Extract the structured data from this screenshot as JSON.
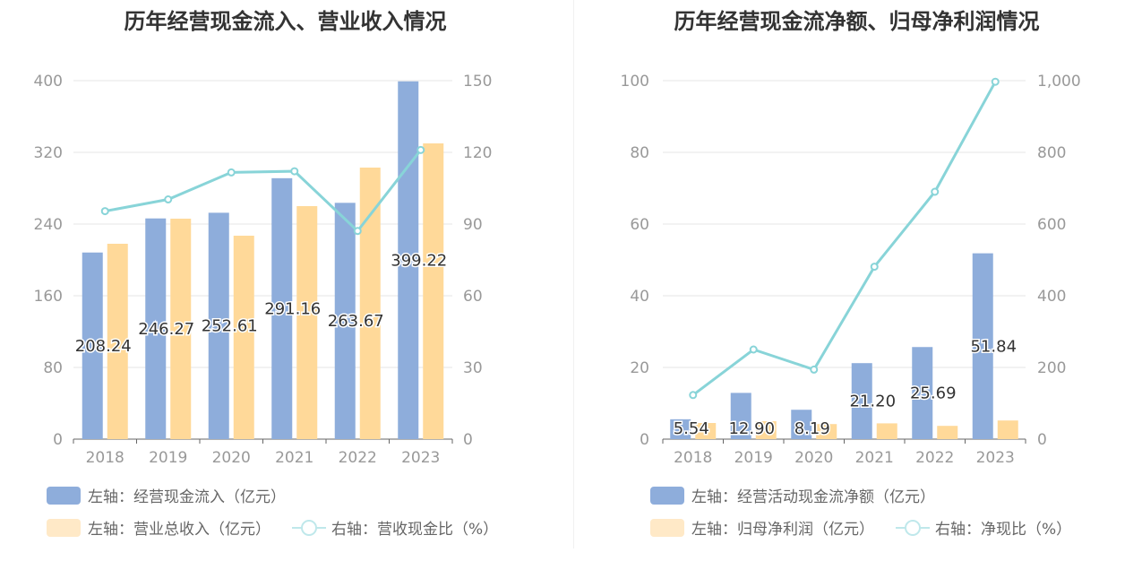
{
  "chart_data": [
    {
      "type": "bar+line",
      "title": "历年经营现金流入、营业收入情况",
      "categories": [
        "2018",
        "2019",
        "2020",
        "2021",
        "2022",
        "2023"
      ],
      "left_axis": {
        "ticks": [
          "0",
          "80",
          "160",
          "240",
          "320",
          "400"
        ],
        "ylim": [
          0,
          400
        ]
      },
      "right_axis": {
        "ticks": [
          "0",
          "30",
          "60",
          "90",
          "120",
          "150"
        ],
        "ylim": [
          0,
          150
        ]
      },
      "series": [
        {
          "name": "左轴：经营现金流入（亿元）",
          "type": "bar",
          "axis": "left",
          "color": "#8eaddb",
          "values": [
            208.24,
            246.27,
            252.61,
            291.16,
            263.67,
            399.22
          ],
          "labels": [
            "208.24",
            "246.27",
            "252.61",
            "291.16",
            "263.67",
            "399.22"
          ]
        },
        {
          "name": "左轴：营业总收入（亿元）",
          "type": "bar",
          "axis": "left",
          "color": "#ffd999",
          "values": [
            218,
            246,
            227,
            260,
            303,
            330
          ]
        },
        {
          "name": "右轴：营收现金比（%）",
          "type": "line",
          "axis": "right",
          "color": "#88d4d8",
          "values": [
            95.4,
            100.3,
            111.6,
            112.1,
            87.1,
            121.0
          ]
        }
      ],
      "legend_position": "bottom",
      "grid": true
    },
    {
      "type": "bar+line",
      "title": "历年经营现金流净额、归母净利润情况",
      "categories": [
        "2018",
        "2019",
        "2020",
        "2021",
        "2022",
        "2023"
      ],
      "left_axis": {
        "ticks": [
          "0",
          "20",
          "40",
          "60",
          "80",
          "100"
        ],
        "ylim": [
          0,
          100
        ]
      },
      "right_axis": {
        "ticks": [
          "0",
          "200",
          "400",
          "600",
          "800",
          "1,000"
        ],
        "ylim": [
          0,
          1000
        ]
      },
      "series": [
        {
          "name": "左轴：经营活动现金流净额（亿元）",
          "type": "bar",
          "axis": "left",
          "color": "#8eaddb",
          "values": [
            5.54,
            12.9,
            8.19,
            21.2,
            25.69,
            51.84
          ],
          "labels": [
            "5.54",
            "12.90",
            "8.19",
            "21.20",
            "25.69",
            "51.84"
          ]
        },
        {
          "name": "左轴：归母净利润（亿元）",
          "type": "bar",
          "axis": "left",
          "color": "#ffd999",
          "values": [
            4.5,
            5.0,
            4.2,
            4.4,
            3.7,
            5.2
          ]
        },
        {
          "name": "右轴：净现比（%）",
          "type": "line",
          "axis": "right",
          "color": "#88d4d8",
          "values": [
            123,
            250,
            194,
            481,
            690,
            997
          ]
        }
      ],
      "legend_position": "bottom",
      "grid": true
    }
  ]
}
